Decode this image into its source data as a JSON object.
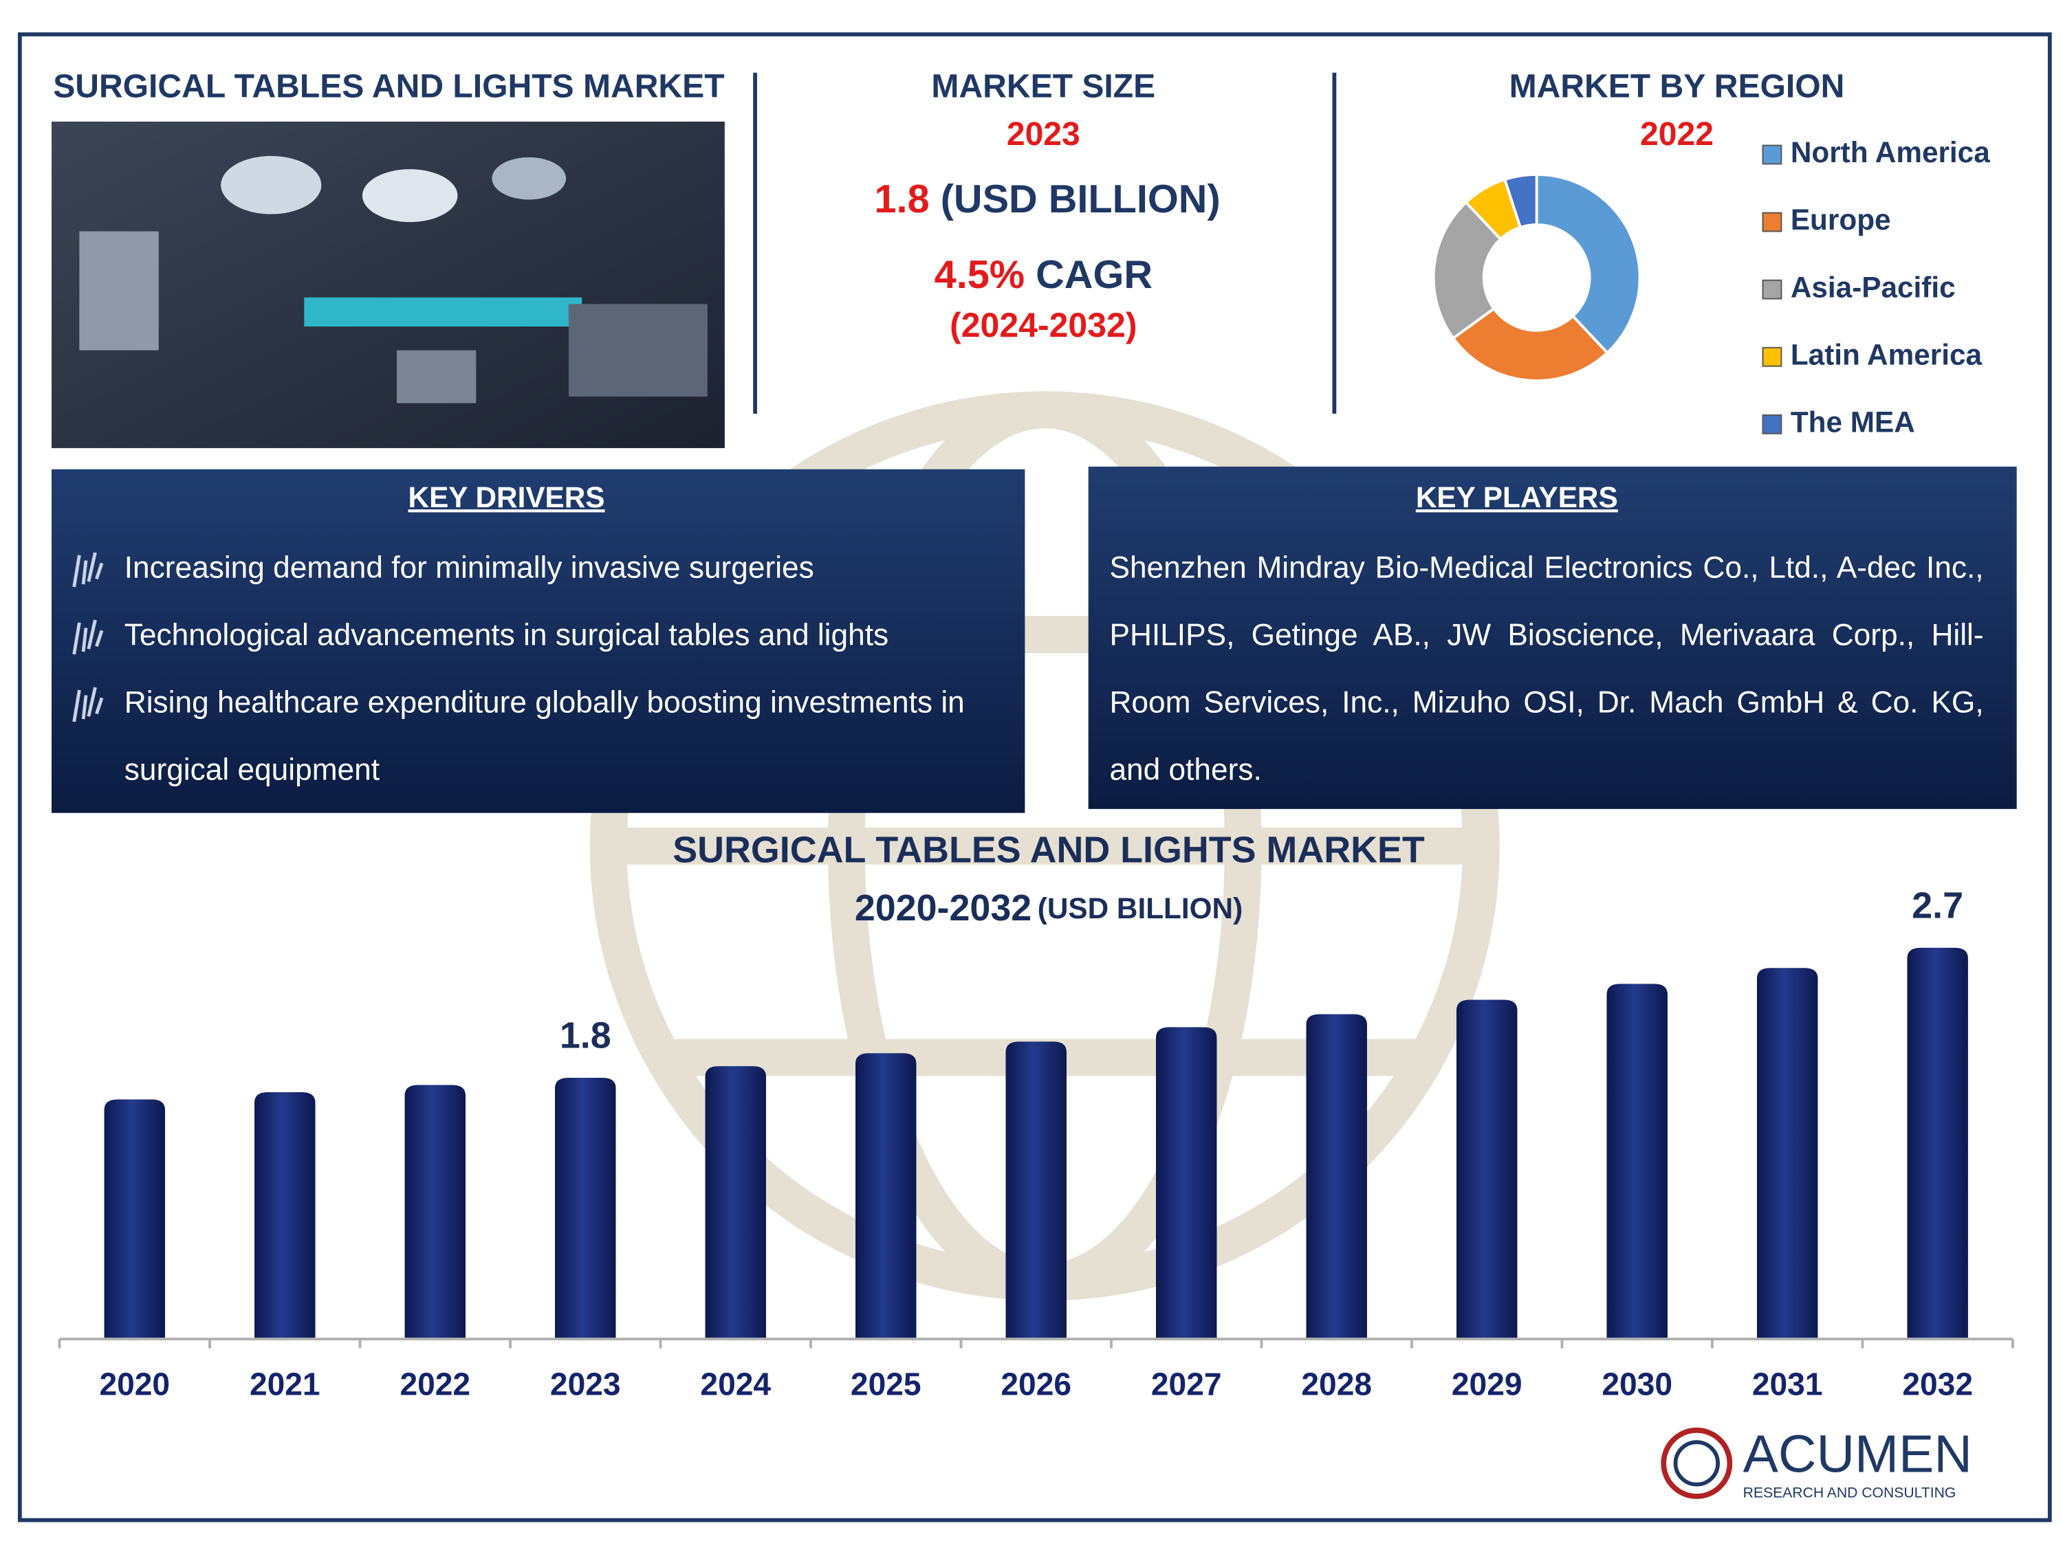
{
  "title": "SURGICAL TABLES AND LIGHTS MARKET",
  "market_size": {
    "heading": "MARKET SIZE",
    "year": "2023",
    "value": "1.8",
    "unit": "(USD BILLION)",
    "cagr": "4.5%",
    "cagr_label": "CAGR",
    "period": "(2024-2032)"
  },
  "key_drivers": {
    "heading": "KEY DRIVERS",
    "items": [
      "Increasing demand for minimally invasive surgeries",
      "Technological advancements in surgical tables and lights",
      "Rising healthcare expenditure globally boosting investments in surgical equipment"
    ]
  },
  "key_players": {
    "heading": "KEY PLAYERS",
    "text": "Shenzhen Mindray Bio-Medical Electronics Co., Ltd., A-dec Inc., PHILIPS, Getinge AB., JW Bioscience, Merivaara Corp., Hill-Room Services, Inc., Mizuho OSI, Dr. Mach GmbH & Co. KG, and others."
  },
  "logo": {
    "name": "ACUMEN",
    "tagline": "RESEARCH AND CONSULTING"
  },
  "chart_data": [
    {
      "type": "pie",
      "donut": true,
      "title": "MARKET BY REGION",
      "subtitle": "2022",
      "categories": [
        "North America",
        "Europe",
        "Asia-Pacific",
        "Latin America",
        "The MEA"
      ],
      "values": [
        38,
        27,
        23,
        7,
        5
      ],
      "colors": [
        "#5b9bd5",
        "#ed7d31",
        "#a5a5a5",
        "#ffc000",
        "#4472c4"
      ]
    },
    {
      "type": "bar",
      "title": "SURGICAL TABLES AND LIGHTS MARKET",
      "subtitle": "2020-2032",
      "unit": "(USD BILLION)",
      "categories": [
        "2020",
        "2021",
        "2022",
        "2023",
        "2024",
        "2025",
        "2026",
        "2027",
        "2028",
        "2029",
        "2030",
        "2031",
        "2032"
      ],
      "values": [
        1.65,
        1.7,
        1.75,
        1.8,
        1.88,
        1.97,
        2.05,
        2.15,
        2.24,
        2.34,
        2.45,
        2.56,
        2.7
      ],
      "value_labels": [
        null,
        null,
        null,
        "1.8",
        null,
        null,
        null,
        null,
        null,
        null,
        null,
        null,
        "2.7"
      ],
      "color": "#14246b"
    }
  ]
}
